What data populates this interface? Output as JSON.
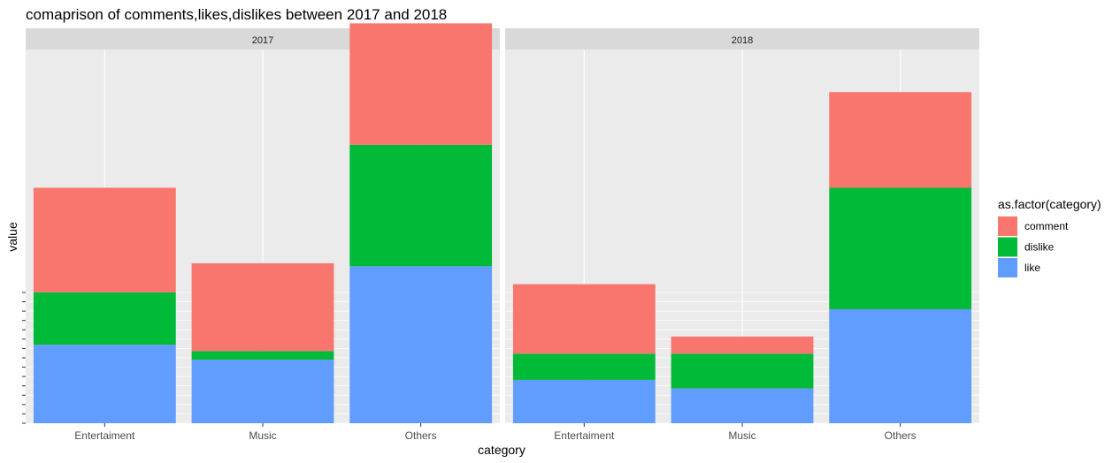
{
  "chart_data": {
    "type": "bar",
    "stacked": true,
    "title": "comaprison of comments,likes,dislikes between 2017 and 2018",
    "xlabel": "category",
    "ylabel": "value",
    "ylim": [
      0,
      100
    ],
    "y_tick_labels_shown": false,
    "categories": [
      "Entertaiment",
      "Music",
      "Others"
    ],
    "facets": [
      {
        "label": "2017",
        "series": [
          {
            "name": "like",
            "values": [
              21,
              17,
              42
            ]
          },
          {
            "name": "dislike",
            "values": [
              14,
              2.3,
              32.5
            ]
          },
          {
            "name": "comment",
            "values": [
              28,
              23.5,
              32.5
            ]
          }
        ]
      },
      {
        "label": "2018",
        "series": [
          {
            "name": "like",
            "values": [
              11.6,
              9.3,
              30.5
            ]
          },
          {
            "name": "dislike",
            "values": [
              7,
              9.3,
              32.5
            ]
          },
          {
            "name": "comment",
            "values": [
              18.6,
              4.6,
              25.6
            ]
          }
        ]
      }
    ],
    "legend": {
      "title": "as.factor(category)",
      "position": "right",
      "items": [
        {
          "name": "comment",
          "color": "#F8766D"
        },
        {
          "name": "dislike",
          "color": "#00BA38"
        },
        {
          "name": "like",
          "color": "#619CFF"
        }
      ]
    },
    "colors": {
      "like": "#619CFF",
      "dislike": "#00BA38",
      "comment": "#F8766D",
      "panel_background": "#EBEBEB",
      "strip_background": "#D9D9D9",
      "grid": "#FFFFFF"
    },
    "grid": true
  }
}
